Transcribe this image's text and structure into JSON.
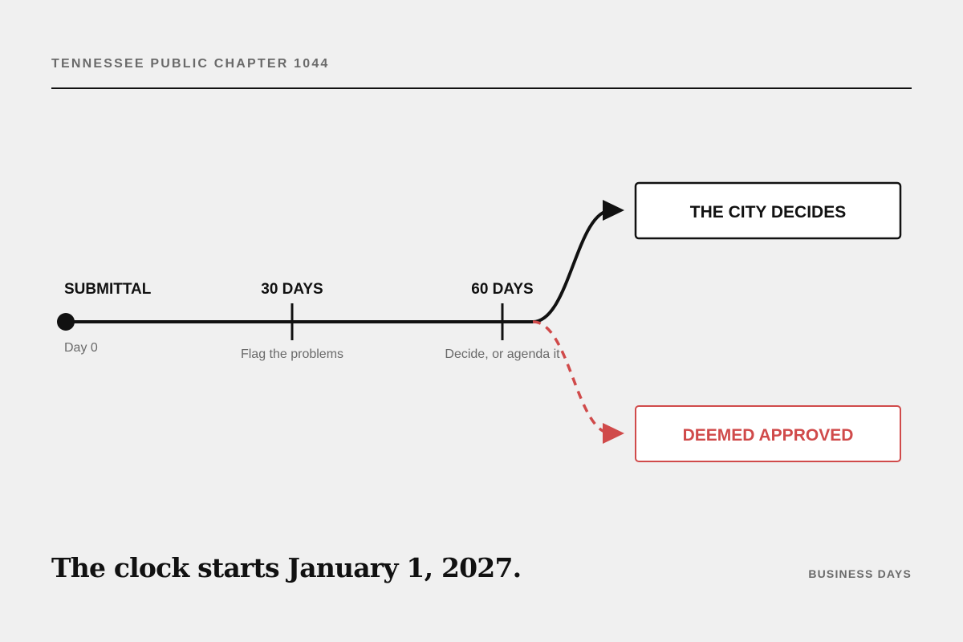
{
  "kicker": "TENNESSEE PUBLIC CHAPTER 1044",
  "headline": "The clock starts January 1, 2027.",
  "units_label": "BUSINESS DAYS",
  "colors": {
    "ink": "#111111",
    "muted": "#6a6a6a",
    "approved": "#d04a4a",
    "background": "#f0f0f0"
  },
  "timeline": {
    "milestones": [
      {
        "id": "submittal",
        "day": 0,
        "label": "SUBMITTAL",
        "sublabel": "Day 0"
      },
      {
        "id": "day30",
        "day": 30,
        "label": "30 DAYS",
        "sublabel": "Flag the problems"
      },
      {
        "id": "day60",
        "day": 60,
        "label": "60 DAYS",
        "sublabel": "Decide, or agenda it"
      }
    ]
  },
  "outcomes": {
    "decides": {
      "label": "THE CITY DECIDES",
      "style": "solid"
    },
    "approved": {
      "label": "DEEMED APPROVED",
      "style": "dashed"
    }
  }
}
